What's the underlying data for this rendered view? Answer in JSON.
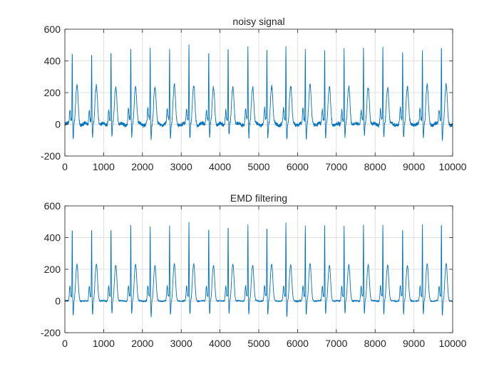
{
  "chart_data": [
    {
      "type": "line",
      "title": "noisy signal",
      "xlabel": "",
      "ylabel": "",
      "xlim": [
        0,
        10000
      ],
      "ylim": [
        -200,
        600
      ],
      "xticks": [
        0,
        1000,
        2000,
        3000,
        4000,
        5000,
        6000,
        7000,
        8000,
        9000,
        10000
      ],
      "yticks": [
        -200,
        0,
        200,
        400,
        600
      ],
      "xtick_labels": [
        "0",
        "1000",
        "2000",
        "3000",
        "4000",
        "5000",
        "6000",
        "7000",
        "8000",
        "9000",
        "10000"
      ],
      "ytick_labels": [
        "-200",
        "0",
        "200",
        "400",
        "600"
      ],
      "grid": true,
      "line_color": "#0072BD",
      "noise_amplitude": 12,
      "beats": {
        "r_peak_x": [
          190,
          690,
          1190,
          1700,
          2200,
          2700,
          3200,
          3710,
          4210,
          4720,
          5210,
          5700,
          6200,
          6700,
          7200,
          7700,
          8200,
          8710,
          9220,
          9710
        ],
        "r_peak_y": [
          490,
          490,
          490,
          495,
          490,
          495,
          520,
          495,
          505,
          500,
          500,
          515,
          500,
          500,
          495,
          500,
          500,
          490,
          505,
          525
        ],
        "t_peak_y": [
          235,
          240,
          235,
          240,
          230,
          240,
          240,
          230,
          240,
          235,
          240,
          235,
          240,
          230,
          235,
          235,
          235,
          230,
          240,
          240
        ],
        "s_trough_y": [
          -90,
          -85,
          -80,
          -80,
          -95,
          -85,
          -80,
          -85,
          -80,
          -85,
          -85,
          -95,
          -85,
          -80,
          -80,
          -80,
          -85,
          -85,
          -80,
          -90
        ]
      }
    },
    {
      "type": "line",
      "title": "EMD filtering",
      "xlabel": "",
      "ylabel": "",
      "xlim": [
        0,
        10000
      ],
      "ylim": [
        -200,
        600
      ],
      "xticks": [
        0,
        1000,
        2000,
        3000,
        4000,
        5000,
        6000,
        7000,
        8000,
        9000,
        10000
      ],
      "yticks": [
        -200,
        0,
        200,
        400,
        600
      ],
      "xtick_labels": [
        "0",
        "1000",
        "2000",
        "3000",
        "4000",
        "5000",
        "6000",
        "7000",
        "8000",
        "9000",
        "10000"
      ],
      "ytick_labels": [
        "-200",
        "0",
        "200",
        "400",
        "600"
      ],
      "grid": true,
      "line_color": "#0072BD",
      "noise_amplitude": 3,
      "beats": {
        "r_peak_x": [
          190,
          690,
          1190,
          1700,
          2200,
          2700,
          3200,
          3710,
          4210,
          4720,
          5210,
          5700,
          6200,
          6700,
          7200,
          7700,
          8200,
          8710,
          9220,
          9710
        ],
        "r_peak_y": [
          490,
          490,
          490,
          495,
          490,
          495,
          520,
          495,
          505,
          500,
          500,
          515,
          500,
          500,
          495,
          500,
          500,
          490,
          505,
          525
        ],
        "t_peak_y": [
          225,
          230,
          225,
          230,
          220,
          230,
          230,
          220,
          230,
          225,
          230,
          225,
          230,
          220,
          225,
          225,
          225,
          220,
          230,
          230
        ],
        "s_trough_y": [
          -90,
          -85,
          -80,
          -80,
          -100,
          -85,
          -80,
          -85,
          -80,
          -85,
          -85,
          -100,
          -85,
          -80,
          -80,
          -80,
          -85,
          -85,
          -80,
          -90
        ]
      }
    }
  ]
}
